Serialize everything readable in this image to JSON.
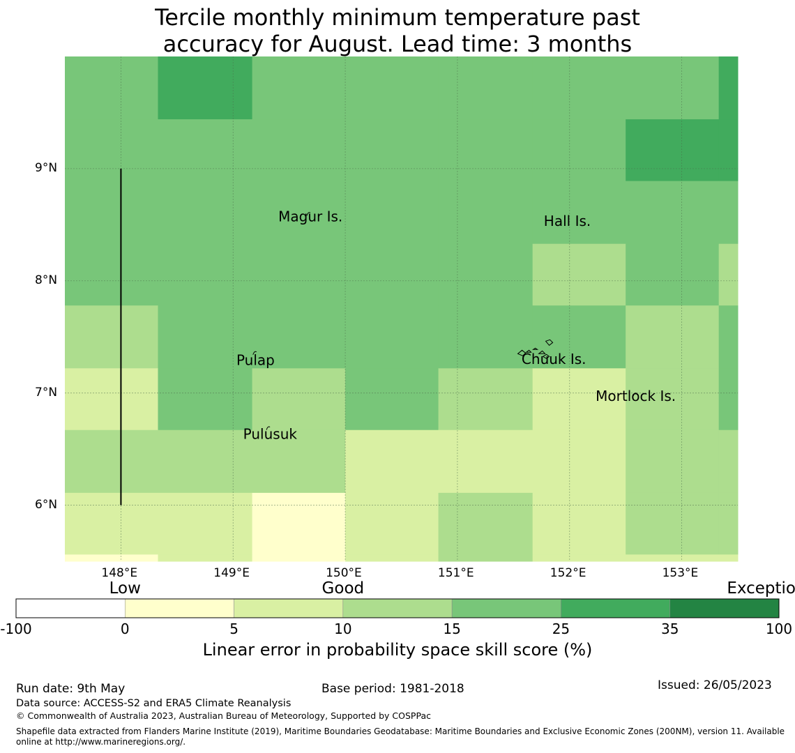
{
  "title": {
    "line1": "Tercile monthly minimum temperature past",
    "line2": "accuracy for August. Lead time: 3 months"
  },
  "map": {
    "lon_range": [
      147.5,
      153.5
    ],
    "lat_range": [
      5.5,
      10.0
    ],
    "lon_ticks": [
      {
        "value": 148,
        "label": "148°E"
      },
      {
        "value": 149,
        "label": "149°E"
      },
      {
        "value": 150,
        "label": "150°E"
      },
      {
        "value": 151,
        "label": "151°E"
      },
      {
        "value": 152,
        "label": "152°E"
      },
      {
        "value": 153,
        "label": "153°E"
      }
    ],
    "lat_ticks": [
      {
        "value": 9,
        "label": "9°N"
      },
      {
        "value": 8,
        "label": "8°N"
      },
      {
        "value": 7,
        "label": "7°N"
      },
      {
        "value": 6,
        "label": "6°N"
      }
    ],
    "grid_lines": "dashed",
    "skill_classes": {
      "c0": "#ffffcc",
      "c5": "#d9f0a3",
      "c10": "#addd8e",
      "c15": "#78c679",
      "c25": "#41ab5d"
    },
    "grid_columns_lon": [
      147.5,
      148.33,
      149.17,
      150.0,
      150.83,
      151.67,
      152.5,
      153.33,
      153.5
    ],
    "grid_rows_lat": [
      10.0,
      9.44,
      8.89,
      8.33,
      7.78,
      7.22,
      6.67,
      6.11,
      5.56,
      5.5
    ],
    "skill_grid": [
      [
        "c15",
        "c25",
        "c15",
        "c15",
        "c15",
        "c15",
        "c15",
        "c25"
      ],
      [
        "c15",
        "c15",
        "c15",
        "c15",
        "c15",
        "c15",
        "c25",
        "c25"
      ],
      [
        "c15",
        "c15",
        "c15",
        "c15",
        "c15",
        "c15",
        "c15",
        "c15"
      ],
      [
        "c15",
        "c15",
        "c15",
        "c15",
        "c15",
        "c10",
        "c15",
        "c10"
      ],
      [
        "c10",
        "c15",
        "c15",
        "c15",
        "c15",
        "c15",
        "c10",
        "c15"
      ],
      [
        "c5",
        "c15",
        "c10",
        "c15",
        "c10",
        "c5",
        "c10",
        "c15"
      ],
      [
        "c10",
        "c10",
        "c10",
        "c5",
        "c5",
        "c5",
        "c10",
        "c10"
      ],
      [
        "c5",
        "c5",
        "c0",
        "c5",
        "c10",
        "c5",
        "c10",
        "c10"
      ],
      [
        "c0",
        "c5",
        "c0",
        "c5",
        "c10",
        "c5",
        "c5",
        "c5"
      ]
    ],
    "place_labels": [
      {
        "name": "Magur Is.",
        "lon": 149.69,
        "lat": 8.53
      },
      {
        "name": "Hall Is.",
        "lon": 151.98,
        "lat": 8.49
      },
      {
        "name": "Pulap",
        "lon": 149.2,
        "lat": 7.25
      },
      {
        "name": "Chuuk Is.",
        "lon": 151.86,
        "lat": 7.26
      },
      {
        "name": "Mortlock Is.",
        "lon": 152.59,
        "lat": 6.93
      },
      {
        "name": "Pulusuk",
        "lon": 149.33,
        "lat": 6.59
      }
    ],
    "islands": [
      {
        "lon": 149.67,
        "lat": 8.6
      },
      {
        "lon": 149.19,
        "lat": 7.36
      },
      {
        "lon": 149.31,
        "lat": 6.69
      },
      {
        "lon": 151.8,
        "lat": 7.4
      },
      {
        "lon": 152.58,
        "lat": 6.99
      }
    ],
    "boundary_line": {
      "lon": 148.0,
      "lat_from": 6.0,
      "lat_to": 9.0
    }
  },
  "colorbar": {
    "categories": [
      {
        "label": "Low",
        "at": 0.5
      },
      {
        "label": "Good",
        "at": 2.5
      },
      {
        "label": "Exceptional",
        "at": 6.45
      }
    ],
    "segments": [
      {
        "from": "-100",
        "to": "0",
        "color": "#ffffff"
      },
      {
        "from": "0",
        "to": "5",
        "color": "#ffffcc"
      },
      {
        "from": "5",
        "to": "10",
        "color": "#d9f0a3"
      },
      {
        "from": "10",
        "to": "15",
        "color": "#addd8e"
      },
      {
        "from": "15",
        "to": "25",
        "color": "#78c679"
      },
      {
        "from": "25",
        "to": "35",
        "color": "#41ab5d"
      },
      {
        "from": "35",
        "to": "100",
        "color": "#238443"
      }
    ],
    "tick_labels": [
      "-100",
      "0",
      "5",
      "10",
      "15",
      "25",
      "35",
      "100"
    ],
    "label": "Linear error in probability space skill score (%)"
  },
  "footer": {
    "run_date": "Run date: 9th May",
    "base_period": "Base period: 1981-2018",
    "issued": "Issued: 26/05/2023",
    "data_source": "Data source: ACCESS-S2 and ERA5 Climate Reanalysis",
    "copyright": "© Commonwealth of Australia 2023, Australian Bureau of Meteorology, Supported by COSPPac",
    "shapefile": "Shapefile data extracted from Flanders Marine Institute (2019), Maritime Boundaries Geodatabase: Maritime Boundaries and Exclusive Economic Zones (200NM), version 11. Available online at http://www.marineregions.org/."
  }
}
